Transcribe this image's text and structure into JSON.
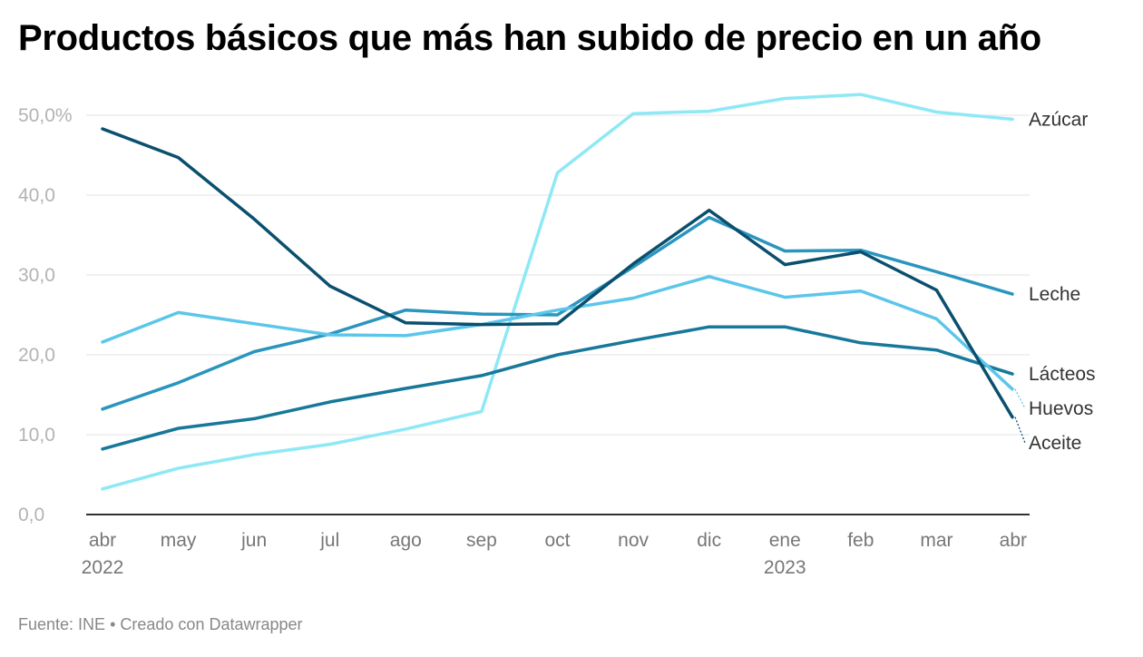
{
  "title": "Productos básicos que más han subido de precio en un año",
  "footer": {
    "source": "Fuente: INE",
    "separator": "•",
    "credit": "Creado con Datawrapper"
  },
  "chart_data": {
    "type": "line",
    "title": "Productos básicos que más han subido de precio en un año",
    "xlabel": "",
    "ylabel": "",
    "ylim": [
      0,
      50
    ],
    "yticks": [
      "0,0",
      "10,0",
      "20,0",
      "30,0",
      "40,0",
      "50,0%"
    ],
    "x": [
      "abr",
      "may",
      "jun",
      "jul",
      "ago",
      "sep",
      "oct",
      "nov",
      "dic",
      "ene",
      "feb",
      "mar",
      "abr"
    ],
    "year_labels": [
      {
        "index": 0,
        "label": "2022"
      },
      {
        "index": 9,
        "label": "2023"
      }
    ],
    "grid": true,
    "legend": "direct labels at line ends (right)",
    "series": [
      {
        "name": "Azúcar",
        "color": "#8ee8f5",
        "values": [
          3.2,
          5.8,
          7.5,
          8.8,
          10.7,
          12.9,
          42.8,
          50.2,
          50.5,
          52.1,
          52.6,
          50.4,
          49.5
        ]
      },
      {
        "name": "Leche",
        "color": "#2a95be",
        "values": [
          13.2,
          16.5,
          20.4,
          22.6,
          25.6,
          25.1,
          25.0,
          31.0,
          37.2,
          33.0,
          33.1,
          30.4,
          27.6
        ]
      },
      {
        "name": "Lácteos",
        "color": "#17789a",
        "values": [
          8.2,
          10.8,
          12.0,
          14.1,
          15.8,
          17.4,
          20.0,
          21.8,
          23.5,
          23.5,
          21.5,
          20.6,
          17.6
        ]
      },
      {
        "name": "Huevos",
        "color": "#5cc6ea",
        "values": [
          21.6,
          25.3,
          23.9,
          22.5,
          22.4,
          23.8,
          25.6,
          27.1,
          29.8,
          27.2,
          28.0,
          24.5,
          15.7
        ]
      },
      {
        "name": "Aceite",
        "color": "#0b4f6e",
        "values": [
          48.3,
          44.7,
          37.0,
          28.6,
          24.0,
          23.8,
          23.9,
          31.4,
          38.1,
          31.3,
          32.9,
          28.1,
          12.2
        ]
      }
    ]
  }
}
